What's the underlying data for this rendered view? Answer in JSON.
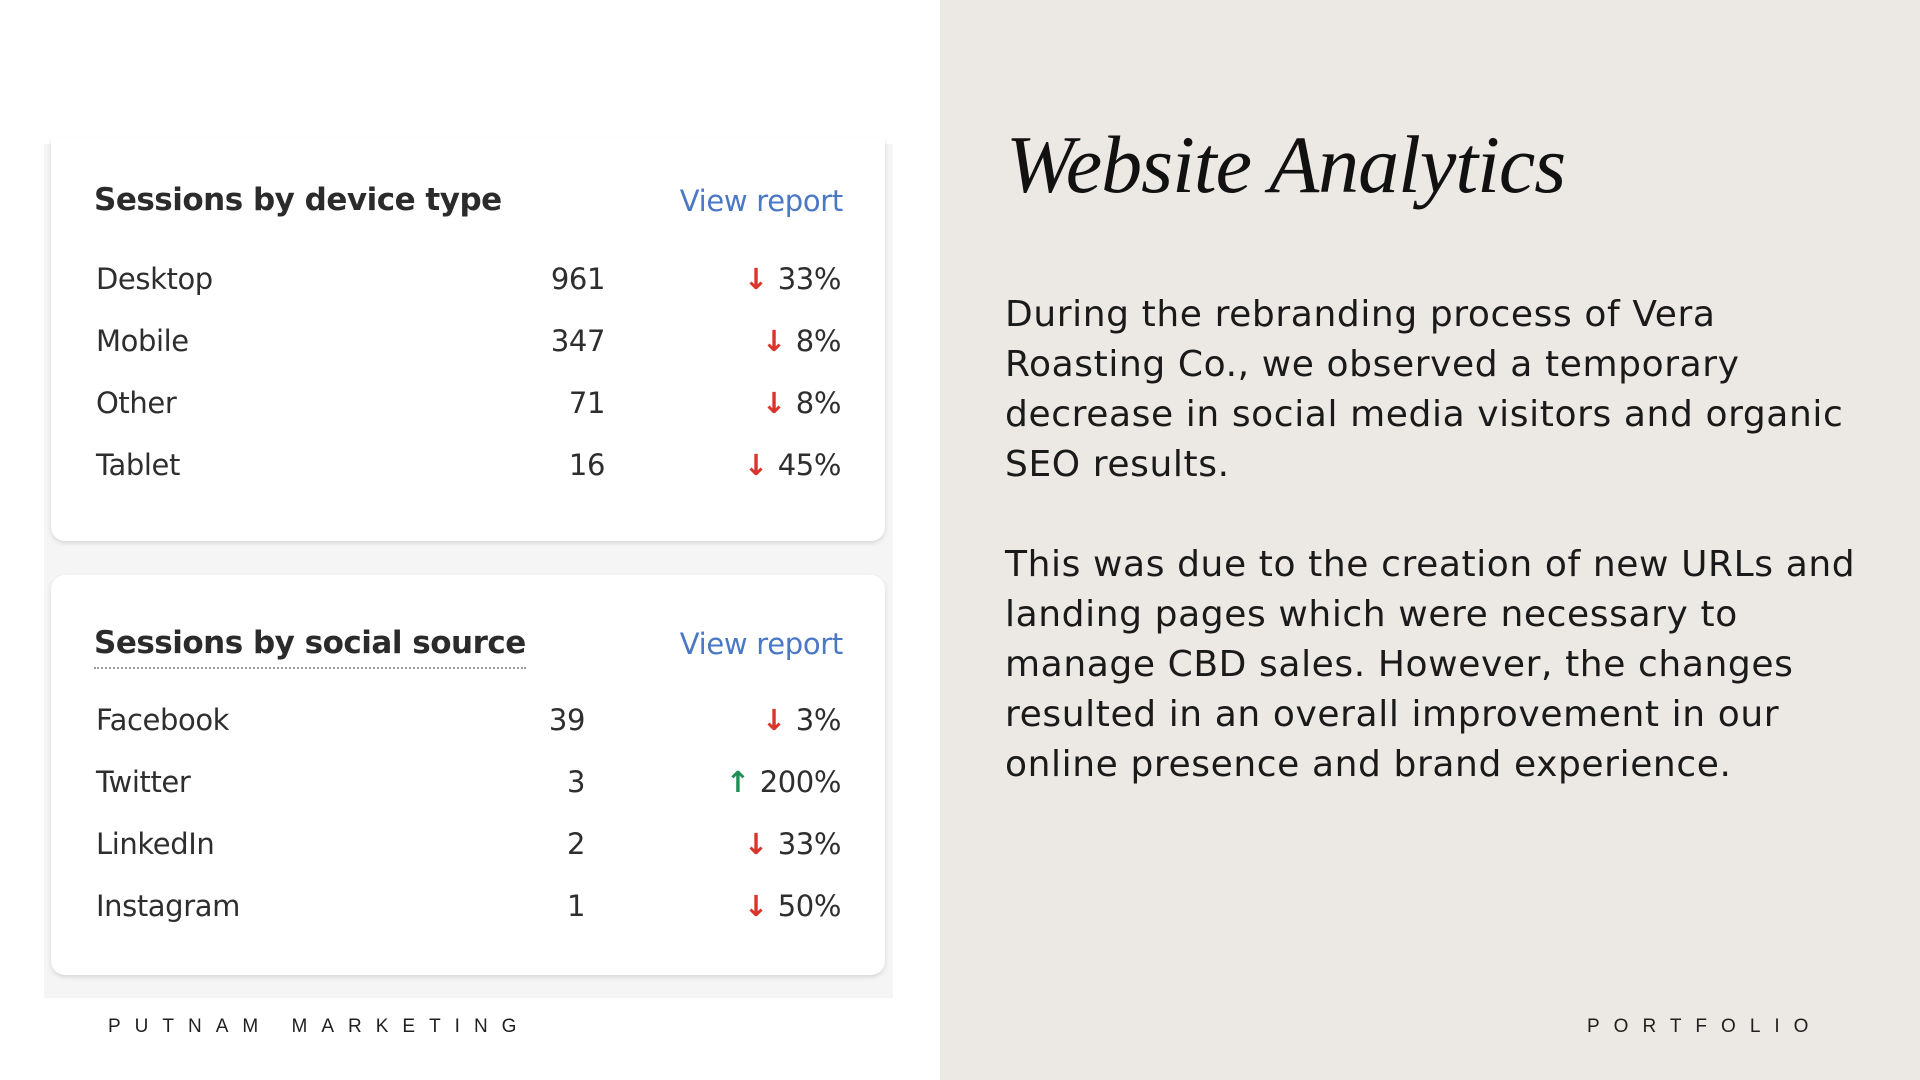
{
  "slide": {
    "title": "Website Analytics",
    "paragraphs": [
      "During the rebranding process of Vera Roasting Co., we observed a temporary decrease in social media visitors and organic SEO results.",
      "This was due to the creation of new URLs and landing pages which were necessary to manage CBD sales. However, the changes resulted in an overall improvement in our online presence and brand experience."
    ],
    "footer_left": "PUTNAM MARKETING",
    "footer_right": "PORTFOLIO"
  },
  "device_card": {
    "title": "Sessions by device type",
    "view_report": "View report",
    "rows": [
      {
        "label": "Desktop",
        "value": "961",
        "direction": "down",
        "arrow": "↓",
        "change": "33%"
      },
      {
        "label": "Mobile",
        "value": "347",
        "direction": "down",
        "arrow": "↓",
        "change": "8%"
      },
      {
        "label": "Other",
        "value": "71",
        "direction": "down",
        "arrow": "↓",
        "change": "8%"
      },
      {
        "label": "Tablet",
        "value": "16",
        "direction": "down",
        "arrow": "↓",
        "change": "45%"
      }
    ]
  },
  "social_card": {
    "title": "Sessions by social source",
    "view_report": "View report",
    "rows": [
      {
        "label": "Facebook",
        "value": "39",
        "direction": "down",
        "arrow": "↓",
        "change": "3%"
      },
      {
        "label": "Twitter",
        "value": "3",
        "direction": "up",
        "arrow": "↑",
        "change": "200%"
      },
      {
        "label": "LinkedIn",
        "value": "2",
        "direction": "down",
        "arrow": "↓",
        "change": "33%"
      },
      {
        "label": "Instagram",
        "value": "1",
        "direction": "down",
        "arrow": "↓",
        "change": "50%"
      }
    ]
  },
  "colors": {
    "right_background": "#ece8e3",
    "link": "#4a78c4",
    "decrease": "#d9352c",
    "increase": "#1f8f55"
  },
  "icons": {
    "down": "arrow-down-icon",
    "up": "arrow-up-icon"
  }
}
